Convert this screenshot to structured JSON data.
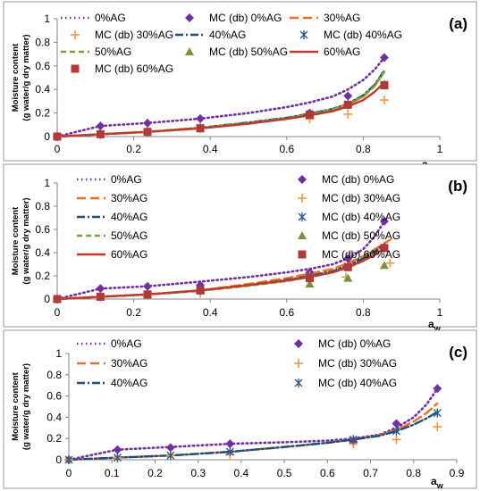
{
  "chart_data": [
    {
      "type": "line",
      "panel_label": "(a)",
      "xlabel_main": "a",
      "xlabel_sub": "w",
      "ylabel_line1": "Moisture content",
      "ylabel_line2": "(g water/g dry matter)",
      "xlim": [
        0,
        1
      ],
      "ylim": [
        0,
        1
      ],
      "x_ticks": [
        "0",
        "0.2",
        "0.4",
        "0.6",
        "0.8",
        "1"
      ],
      "y_ticks": [
        "0",
        "0.2",
        "0.4",
        "0.6",
        "0.8",
        "1"
      ],
      "legend": "top, 3 columns",
      "series": [
        {
          "name": "0%AG",
          "kind": "model",
          "color": "#7030A0",
          "dash": "dot",
          "x": [
            0,
            0.113,
            0.236,
            0.374,
            0.5,
            0.6,
            0.66,
            0.72,
            0.76,
            0.8,
            0.83,
            0.855
          ],
          "y": [
            0,
            0.09,
            0.115,
            0.152,
            0.2,
            0.25,
            0.29,
            0.34,
            0.4,
            0.48,
            0.57,
            0.67
          ]
        },
        {
          "name": "MC (db) 0%AG",
          "kind": "measured",
          "color": "#7030A0",
          "marker": "diamond",
          "x": [
            0,
            0.113,
            0.236,
            0.374,
            0.66,
            0.76,
            0.855
          ],
          "y": [
            0,
            0.09,
            0.115,
            0.152,
            0.2,
            0.345,
            0.67
          ]
        },
        {
          "name": "30%AG",
          "kind": "model",
          "color": "#F07020",
          "dash": "longdash",
          "x": [
            0,
            0.113,
            0.236,
            0.374,
            0.5,
            0.6,
            0.66,
            0.72,
            0.76,
            0.8,
            0.83,
            0.855
          ],
          "y": [
            0,
            0.02,
            0.04,
            0.07,
            0.11,
            0.155,
            0.19,
            0.23,
            0.27,
            0.34,
            0.43,
            0.55
          ]
        },
        {
          "name": "MC (db) 30%AG",
          "kind": "measured",
          "color": "#F79646",
          "marker": "plus",
          "x": [
            0,
            0.113,
            0.236,
            0.374,
            0.66,
            0.76,
            0.855
          ],
          "y": [
            0,
            0.02,
            0.04,
            0.07,
            0.15,
            0.19,
            0.31
          ]
        },
        {
          "name": "40%AG",
          "kind": "model",
          "color": "#1F4E79",
          "dash": "dashdot",
          "x": [
            0,
            0.113,
            0.236,
            0.374,
            0.5,
            0.6,
            0.66,
            0.72,
            0.76,
            0.8,
            0.83,
            0.855
          ],
          "y": [
            0,
            0.02,
            0.04,
            0.075,
            0.12,
            0.16,
            0.195,
            0.235,
            0.28,
            0.35,
            0.44,
            0.56
          ]
        },
        {
          "name": "MC (db) 40%AG",
          "kind": "measured",
          "color": "#2E5A8A",
          "marker": "asterisk",
          "x": [
            0,
            0.113,
            0.236,
            0.374,
            0.66,
            0.76,
            0.855
          ],
          "y": [
            0,
            0.02,
            0.04,
            0.075,
            0.19,
            0.27,
            0.44
          ]
        },
        {
          "name": "50%AG",
          "kind": "model",
          "color": "#77A33A",
          "dash": "dash",
          "x": [
            0,
            0.113,
            0.236,
            0.374,
            0.5,
            0.6,
            0.66,
            0.72,
            0.76,
            0.8,
            0.83,
            0.855
          ],
          "y": [
            0,
            0.02,
            0.04,
            0.075,
            0.115,
            0.155,
            0.19,
            0.23,
            0.275,
            0.34,
            0.43,
            0.55
          ]
        },
        {
          "name": "MC (db) 50%AG",
          "kind": "measured",
          "color": "#77933C",
          "marker": "triangle",
          "x": [],
          "y": []
        },
        {
          "name": "MC (db) 60%AG",
          "kind": "measured",
          "color": "#B03A3A",
          "marker": "square",
          "x": [
            0,
            0.113,
            0.236,
            0.374,
            0.66,
            0.76,
            0.855
          ],
          "y": [
            0,
            0.02,
            0.04,
            0.07,
            0.185,
            0.27,
            0.435
          ]
        },
        {
          "name": "60%AG",
          "kind": "model",
          "color": "#C0392B",
          "dash": "solid",
          "x": [
            0,
            0.113,
            0.236,
            0.374,
            0.5,
            0.6,
            0.66,
            0.72,
            0.76,
            0.8,
            0.83,
            0.855
          ],
          "y": [
            0,
            0.02,
            0.04,
            0.07,
            0.11,
            0.15,
            0.18,
            0.215,
            0.255,
            0.31,
            0.38,
            0.46
          ]
        }
      ]
    },
    {
      "type": "line",
      "panel_label": "(b)",
      "xlabel_main": "a",
      "xlabel_sub": "w",
      "ylabel_line1": "Moisture content",
      "ylabel_line2": "(g water/g dry matter)",
      "xlim": [
        0,
        1
      ],
      "ylim": [
        0,
        1
      ],
      "x_ticks": [
        "0",
        "0.2",
        "0.4",
        "0.6",
        "0.8",
        "1"
      ],
      "y_ticks": [
        "0",
        "0.2",
        "0.4",
        "0.6",
        "0.8",
        "1"
      ],
      "legend": "top, 2 columns",
      "series": [
        {
          "name": "0%AG",
          "kind": "model",
          "color": "#7030A0",
          "dash": "dot",
          "x": [
            0,
            0.113,
            0.236,
            0.374,
            0.5,
            0.6,
            0.66,
            0.72,
            0.76,
            0.8,
            0.83,
            0.855
          ],
          "y": [
            0,
            0.09,
            0.11,
            0.15,
            0.19,
            0.23,
            0.26,
            0.3,
            0.35,
            0.43,
            0.54,
            0.67
          ]
        },
        {
          "name": "MC (db) 0%AG",
          "kind": "measured",
          "color": "#7030A0",
          "marker": "diamond",
          "x": [
            0,
            0.113,
            0.236,
            0.374,
            0.66,
            0.76,
            0.855
          ],
          "y": [
            0,
            0.09,
            0.11,
            0.12,
            0.23,
            0.35,
            0.67
          ]
        },
        {
          "name": "30%AG",
          "kind": "model",
          "color": "#F07020",
          "dash": "longdash",
          "x": [
            0,
            0.113,
            0.236,
            0.374,
            0.5,
            0.6,
            0.66,
            0.72,
            0.76,
            0.8,
            0.83,
            0.87
          ],
          "y": [
            0,
            0.02,
            0.04,
            0.075,
            0.13,
            0.18,
            0.22,
            0.26,
            0.31,
            0.37,
            0.43,
            0.51
          ]
        },
        {
          "name": "MC (db) 30%AG",
          "kind": "measured",
          "color": "#F79646",
          "marker": "plus",
          "x": [
            0,
            0.113,
            0.236,
            0.374,
            0.66,
            0.755,
            0.87
          ],
          "y": [
            0,
            0.02,
            0.04,
            0.05,
            0.2,
            0.19,
            0.31
          ]
        },
        {
          "name": "40%AG",
          "kind": "model",
          "color": "#1F4E79",
          "dash": "dashdot",
          "x": [
            0,
            0.113,
            0.236,
            0.374,
            0.5,
            0.6,
            0.66,
            0.72,
            0.76,
            0.8,
            0.83,
            0.855
          ],
          "y": [
            0,
            0.02,
            0.04,
            0.075,
            0.12,
            0.165,
            0.2,
            0.24,
            0.29,
            0.35,
            0.41,
            0.47
          ]
        },
        {
          "name": "MC (db) 40%AG",
          "kind": "measured",
          "color": "#2E5A8A",
          "marker": "asterisk",
          "x": [
            0,
            0.113,
            0.236,
            0.374,
            0.66,
            0.76,
            0.855
          ],
          "y": [
            0,
            0.02,
            0.04,
            0.075,
            0.18,
            0.28,
            0.44
          ]
        },
        {
          "name": "50%AG",
          "kind": "model",
          "color": "#77A33A",
          "dash": "dash",
          "x": [
            0,
            0.113,
            0.236,
            0.374,
            0.5,
            0.6,
            0.66,
            0.72,
            0.76,
            0.8,
            0.83,
            0.855
          ],
          "y": [
            0,
            0.02,
            0.04,
            0.07,
            0.115,
            0.155,
            0.19,
            0.23,
            0.27,
            0.33,
            0.39,
            0.45
          ]
        },
        {
          "name": "MC (db) 50%AG",
          "kind": "measured",
          "color": "#77933C",
          "marker": "triangle",
          "x": [
            0,
            0.113,
            0.236,
            0.374,
            0.66,
            0.76,
            0.855
          ],
          "y": [
            0,
            0.02,
            0.04,
            0.07,
            0.13,
            0.18,
            0.29
          ]
        },
        {
          "name": "60%AG",
          "kind": "model",
          "color": "#C0392B",
          "dash": "solid",
          "x": [
            0,
            0.113,
            0.236,
            0.374,
            0.5,
            0.6,
            0.66,
            0.72,
            0.76,
            0.8,
            0.83,
            0.855
          ],
          "y": [
            0,
            0.02,
            0.04,
            0.075,
            0.12,
            0.16,
            0.19,
            0.23,
            0.275,
            0.33,
            0.38,
            0.44
          ]
        },
        {
          "name": "MC (db) 60%AG",
          "kind": "measured",
          "color": "#B03A3A",
          "marker": "square",
          "x": [
            0,
            0.113,
            0.236,
            0.374,
            0.66,
            0.76,
            0.855
          ],
          "y": [
            0,
            0.02,
            0.04,
            0.075,
            0.18,
            0.275,
            0.44
          ]
        }
      ]
    },
    {
      "type": "line",
      "panel_label": "(c)",
      "xlabel_main": "a",
      "xlabel_sub": "w",
      "ylabel_line1": "Moisture content",
      "ylabel_line2": "(g water/g dry matter)",
      "xlim": [
        0,
        0.9
      ],
      "ylim": [
        0,
        1
      ],
      "x_ticks": [
        "0",
        "0.1",
        "0.2",
        "0.3",
        "0.4",
        "0.5",
        "0.6",
        "0.7",
        "0.8",
        "0.9"
      ],
      "y_ticks": [
        "0",
        "0.2",
        "0.4",
        "0.6",
        "0.8",
        "1"
      ],
      "legend": "top, 2 columns",
      "series": [
        {
          "name": "0%AG",
          "kind": "model",
          "color": "#7030A0",
          "dash": "dot",
          "x": [
            0,
            0.113,
            0.236,
            0.374,
            0.5,
            0.6,
            0.66,
            0.72,
            0.76,
            0.8,
            0.83,
            0.855
          ],
          "y": [
            0,
            0.095,
            0.12,
            0.15,
            0.165,
            0.18,
            0.2,
            0.235,
            0.3,
            0.4,
            0.52,
            0.67
          ]
        },
        {
          "name": "MC (db) 0%AG",
          "kind": "measured",
          "color": "#7030A0",
          "marker": "diamond",
          "x": [
            0,
            0.113,
            0.236,
            0.374,
            0.66,
            0.76,
            0.855
          ],
          "y": [
            0,
            0.095,
            0.115,
            0.15,
            0.17,
            0.34,
            0.67
          ]
        },
        {
          "name": "30%AG",
          "kind": "model",
          "color": "#F07020",
          "dash": "longdash",
          "x": [
            0,
            0.113,
            0.236,
            0.374,
            0.5,
            0.6,
            0.66,
            0.72,
            0.76,
            0.8,
            0.83,
            0.855
          ],
          "y": [
            0,
            0.02,
            0.04,
            0.075,
            0.12,
            0.16,
            0.19,
            0.23,
            0.28,
            0.36,
            0.44,
            0.53
          ]
        },
        {
          "name": "MC (db) 30%AG",
          "kind": "measured",
          "color": "#F79646",
          "marker": "plus",
          "x": [
            0,
            0.113,
            0.236,
            0.374,
            0.66,
            0.76,
            0.855
          ],
          "y": [
            0,
            0.02,
            0.04,
            0.05,
            0.15,
            0.19,
            0.31
          ]
        },
        {
          "name": "40%AG",
          "kind": "model",
          "color": "#1F4E79",
          "dash": "dashdot",
          "x": [
            0,
            0.113,
            0.236,
            0.374,
            0.5,
            0.6,
            0.66,
            0.72,
            0.76,
            0.8,
            0.83,
            0.855
          ],
          "y": [
            0,
            0.02,
            0.04,
            0.075,
            0.12,
            0.16,
            0.19,
            0.225,
            0.27,
            0.33,
            0.39,
            0.45
          ]
        },
        {
          "name": "MC (db) 40%AG",
          "kind": "measured",
          "color": "#2E5A8A",
          "marker": "asterisk",
          "x": [
            0,
            0.113,
            0.236,
            0.374,
            0.66,
            0.76,
            0.855
          ],
          "y": [
            0,
            0.02,
            0.04,
            0.075,
            0.19,
            0.27,
            0.44
          ]
        }
      ]
    }
  ]
}
